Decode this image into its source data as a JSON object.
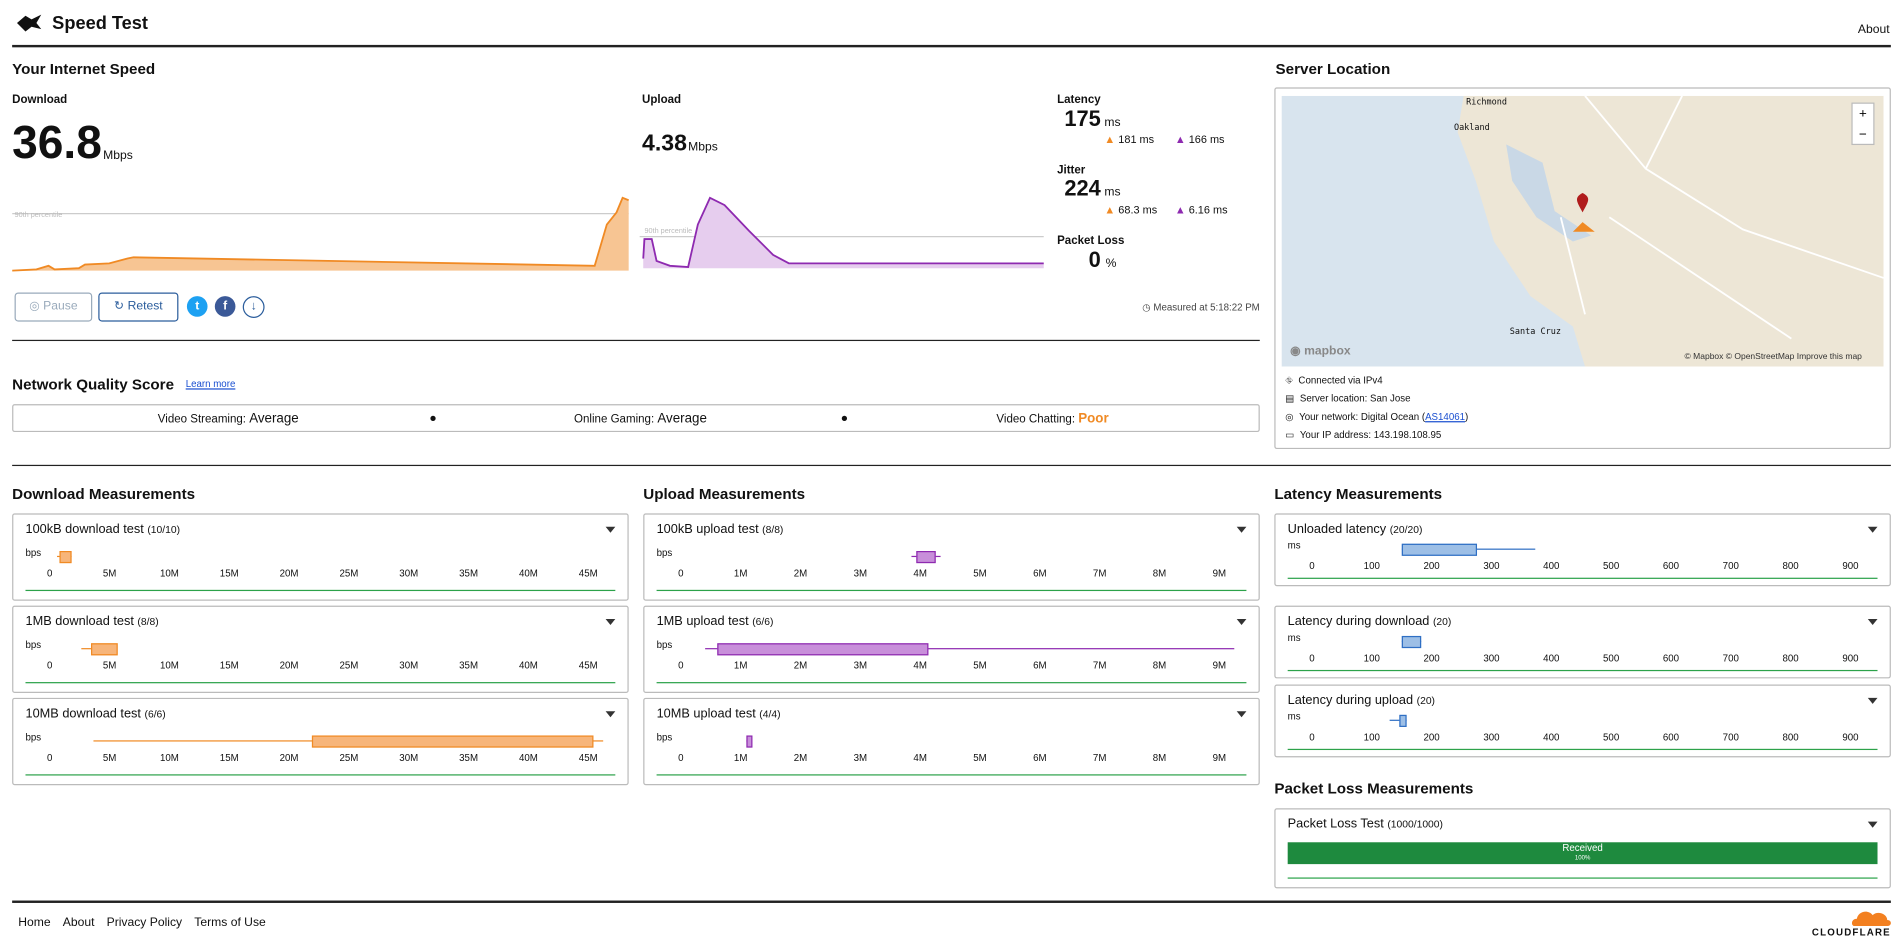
{
  "header": {
    "title": "Speed Test",
    "about": "About"
  },
  "speed": {
    "title": "Your Internet Speed",
    "download": {
      "label": "Download",
      "value": 36.8,
      "unit": "Mbps",
      "percentile": "90th percentile"
    },
    "upload": {
      "label": "Upload",
      "value": 4.38,
      "unit": "Mbps",
      "percentile": "90th percentile"
    },
    "latency": {
      "label": "Latency",
      "value": 175,
      "unit": "ms",
      "down": "181 ms",
      "up": "166 ms"
    },
    "jitter": {
      "label": "Jitter",
      "value": 224,
      "unit": "ms",
      "down": "68.3 ms",
      "up": "6.16 ms"
    },
    "packet_loss": {
      "label": "Packet Loss",
      "value": 0,
      "unit": "%"
    },
    "buttons": {
      "pause": "Pause",
      "retest": "Retest"
    },
    "measured": "Measured at",
    "time": "5:18:22 PM"
  },
  "quality": {
    "title": "Network Quality Score",
    "learn": "Learn more",
    "items": [
      {
        "label": "Video Streaming:",
        "value": "Average"
      },
      {
        "label": "Online Gaming:",
        "value": "Average"
      },
      {
        "label": "Video Chatting:",
        "value": "Poor"
      }
    ]
  },
  "server": {
    "title": "Server Location",
    "map": {
      "places": [
        "Richmond",
        "Oakland",
        "Santa Cruz"
      ],
      "logo": "mapbox",
      "credit": "© Mapbox © OpenStreetMap",
      "improve": "Improve this map"
    },
    "info": {
      "ip": "Connected via IPv4",
      "location": "Server location: San Jose",
      "network": "Your network: Digital Ocean (",
      "asn": "AS14061",
      "close": ")",
      "address": "Your IP address: 143.198.108.95"
    }
  },
  "download_measurements": {
    "title": "Download Measurements",
    "unit": "bps",
    "axis": [
      "0",
      "5M",
      "10M",
      "15M",
      "20M",
      "25M",
      "30M",
      "35M",
      "40M",
      "45M"
    ],
    "tests": [
      {
        "name": "100kB download test",
        "count": "(10/10)"
      },
      {
        "name": "1MB download test",
        "count": "(8/8)"
      },
      {
        "name": "10MB download test",
        "count": "(6/6)"
      }
    ]
  },
  "upload_measurements": {
    "title": "Upload Measurements",
    "unit": "bps",
    "axis": [
      "0",
      "1M",
      "2M",
      "3M",
      "4M",
      "5M",
      "6M",
      "7M",
      "8M",
      "9M"
    ],
    "tests": [
      {
        "name": "100kB upload test",
        "count": "(8/8)"
      },
      {
        "name": "1MB upload test",
        "count": "(6/6)"
      },
      {
        "name": "10MB upload test",
        "count": "(4/4)"
      }
    ]
  },
  "latency_measurements": {
    "title": "Latency Measurements",
    "unit": "ms",
    "axis": [
      "0",
      "100",
      "200",
      "300",
      "400",
      "500",
      "600",
      "700",
      "800",
      "900"
    ],
    "tests": [
      {
        "name": "Unloaded latency",
        "count": "(20/20)"
      },
      {
        "name": "Latency during download",
        "count": "(20)"
      },
      {
        "name": "Latency during upload",
        "count": "(20)"
      }
    ]
  },
  "packet_loss_measurements": {
    "title": "Packet Loss Measurements",
    "test": {
      "name": "Packet Loss Test",
      "count": "(1000/1000)"
    },
    "received": "Received",
    "percent": "100%"
  },
  "footer": {
    "links": [
      "Home",
      "About",
      "Privacy Policy",
      "Terms of Use"
    ],
    "logo": "CLOUDFLARE"
  }
}
